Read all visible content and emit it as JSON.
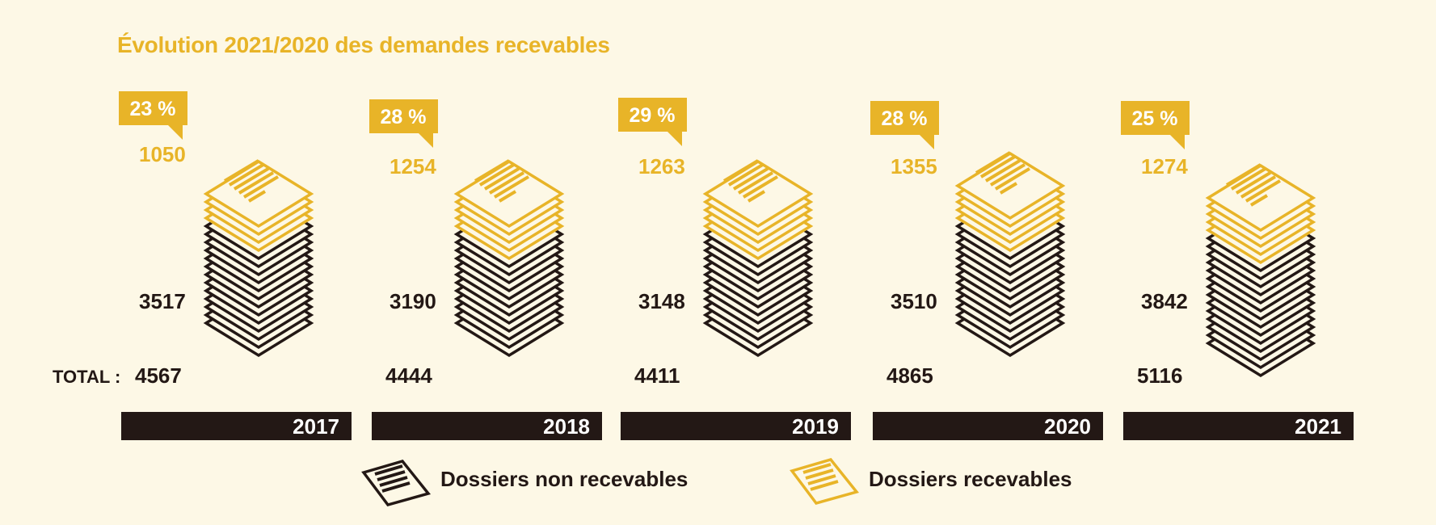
{
  "chart_data": {
    "type": "bar",
    "title": "Évolution 2021/2020 des demandes recevables",
    "categories": [
      "2017",
      "2018",
      "2019",
      "2020",
      "2021"
    ],
    "series": [
      {
        "name": "Dossiers non recevables",
        "values": [
          3517,
          3190,
          3148,
          3510,
          3842
        ],
        "color": "#231815"
      },
      {
        "name": "Dossiers recevables",
        "values": [
          1050,
          1254,
          1263,
          1355,
          1274
        ],
        "color": "#e8b428"
      }
    ],
    "totals": [
      4567,
      4444,
      4411,
      4865,
      5116
    ],
    "percent_labels": [
      "23 %",
      "28 %",
      "29 %",
      "28 %",
      "25 %"
    ],
    "total_label": "TOTAL :",
    "legend_placement": "bottom-center",
    "stacked": true
  },
  "colors": {
    "background": "#fdf8e6",
    "accent": "#e8b428",
    "dark": "#231815"
  }
}
